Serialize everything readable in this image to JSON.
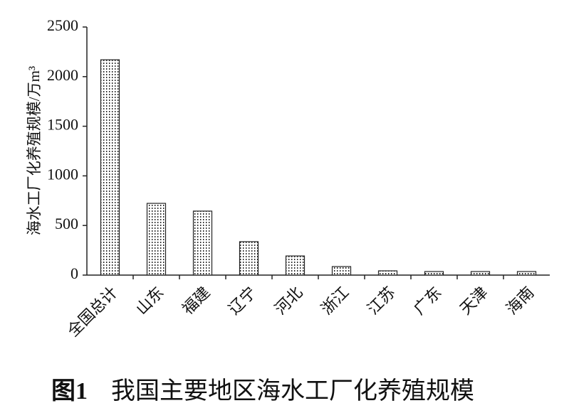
{
  "chart_data": {
    "type": "bar",
    "figure_label": "图1",
    "title": "我国主要地区海水工厂化养殖规模",
    "y_label": "海水工厂化养殖规模/万m³",
    "categories": [
      "全国总计",
      "山东",
      "福建",
      "辽宁",
      "河北",
      "浙江",
      "江苏",
      "广东",
      "天津",
      "海南"
    ],
    "values": [
      2170,
      723,
      645,
      337,
      193,
      86,
      43,
      36,
      36,
      36
    ],
    "color": "#222222",
    "ylim": [
      0,
      2500
    ],
    "yticks": [
      0,
      500,
      1000,
      1500,
      2000,
      2500
    ],
    "grid": false
  }
}
